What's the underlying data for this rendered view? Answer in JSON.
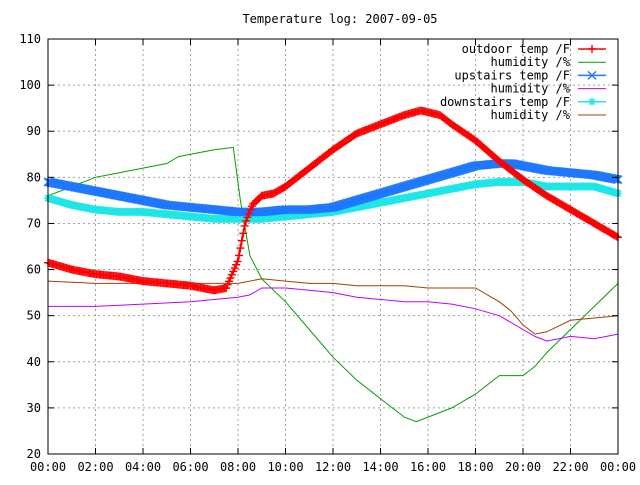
{
  "colors": {
    "outdoor_temp": "#ff0000",
    "outdoor_humidity": "#00a000",
    "upstairs_temp": "#1e78ff",
    "upstairs_humidity": "#c000ff",
    "downstairs_temp": "#1ee6e6",
    "downstairs_humidity": "#a04000"
  },
  "chart_data": {
    "type": "line",
    "title": "Temperature log: 2007-09-05",
    "xlabel": "",
    "ylabel": "",
    "xlim": [
      0,
      24
    ],
    "ylim": [
      20,
      110
    ],
    "grid": true,
    "legend_placement": "top-right",
    "x_ticks": [
      "00:00",
      "02:00",
      "04:00",
      "06:00",
      "08:00",
      "10:00",
      "12:00",
      "14:00",
      "16:00",
      "18:00",
      "20:00",
      "22:00",
      "00:00"
    ],
    "y_ticks": [
      20,
      30,
      40,
      50,
      60,
      70,
      80,
      90,
      100,
      110
    ],
    "series": [
      {
        "name": "outdoor temp /F",
        "color_key": "outdoor_temp",
        "marker": "plus",
        "x": [
          0,
          1,
          2,
          3,
          4,
          5,
          6,
          7,
          7.5,
          8,
          8.3,
          8.6,
          9,
          9.5,
          10,
          11,
          12,
          13,
          14,
          15,
          15.7,
          16.5,
          17,
          18,
          19,
          20,
          21,
          22,
          23,
          24
        ],
        "y": [
          61.5,
          60,
          59,
          58.5,
          57.5,
          57,
          56.5,
          55.5,
          56,
          62,
          70,
          74,
          76,
          76.5,
          78,
          82,
          86,
          89.5,
          91.5,
          93.5,
          94.5,
          93.5,
          91.5,
          88,
          83.5,
          79.5,
          76,
          73,
          70,
          67
        ]
      },
      {
        "name": "humidity /%",
        "color_key": "outdoor_humidity",
        "marker": "none",
        "x": [
          0,
          1,
          2,
          3,
          4,
          5,
          5.5,
          6,
          7,
          7.8,
          8.1,
          8.5,
          9,
          10,
          11,
          12,
          13,
          14,
          15,
          15.5,
          16,
          17,
          18,
          19,
          20,
          20.5,
          21,
          22,
          23,
          24
        ],
        "y": [
          76,
          78,
          80,
          81,
          82,
          83,
          84.5,
          85,
          86,
          86.5,
          75,
          63,
          58,
          53,
          47,
          41,
          36,
          32,
          28,
          27,
          28,
          30,
          33,
          37,
          37,
          39,
          42,
          47,
          52,
          57
        ]
      },
      {
        "name": "upstairs temp /F",
        "color_key": "upstairs_temp",
        "marker": "x",
        "x": [
          0,
          1,
          2,
          3,
          4,
          5,
          6,
          7,
          8,
          9,
          10,
          11,
          12,
          13,
          14,
          15,
          16,
          17,
          18,
          19,
          19.5,
          20,
          21,
          22,
          23,
          24
        ],
        "y": [
          79,
          78,
          77,
          76,
          75,
          74,
          73.5,
          73,
          72.5,
          72.5,
          73,
          73,
          73.5,
          75,
          76.5,
          78,
          79.5,
          81,
          82.5,
          83,
          83,
          82.5,
          81.5,
          81,
          80.5,
          79.5
        ]
      },
      {
        "name": "humidity /%",
        "color_key": "upstairs_humidity",
        "marker": "none",
        "x": [
          0,
          2,
          4,
          6,
          8,
          8.5,
          9,
          10,
          11,
          12,
          13,
          14,
          15,
          16,
          17,
          18,
          19,
          19.5,
          20,
          20.5,
          21,
          21.5,
          22,
          23,
          24
        ],
        "y": [
          52,
          52,
          52.5,
          53,
          54,
          54.5,
          56,
          56,
          55.5,
          55,
          54,
          53.5,
          53,
          53,
          52.5,
          51.5,
          50,
          48.5,
          47,
          45.5,
          44.5,
          45,
          45.5,
          45,
          46
        ]
      },
      {
        "name": "downstairs temp /F",
        "color_key": "downstairs_temp",
        "marker": "star",
        "x": [
          0,
          1,
          2,
          3,
          4,
          5,
          6,
          7,
          8,
          9,
          10,
          11,
          12,
          13,
          14,
          15,
          16,
          17,
          18,
          19,
          20,
          21,
          22,
          23,
          24
        ],
        "y": [
          75.5,
          74,
          73,
          72.5,
          72.5,
          72,
          71.5,
          71,
          71,
          71,
          71.5,
          72,
          72.5,
          73.5,
          74.5,
          75.5,
          76.5,
          77.5,
          78.5,
          79,
          79,
          78,
          78,
          78,
          76.5
        ]
      },
      {
        "name": "humidity /%",
        "color_key": "downstairs_humidity",
        "marker": "none",
        "x": [
          0,
          2,
          4,
          6,
          8,
          9,
          10,
          11,
          12,
          13,
          14,
          15,
          16,
          17,
          18,
          19,
          19.5,
          20,
          20.5,
          21,
          22,
          23,
          24
        ],
        "y": [
          57.5,
          57,
          57,
          57,
          57,
          58,
          57.5,
          57,
          57,
          56.5,
          56.5,
          56.5,
          56,
          56,
          56,
          53,
          51,
          48,
          46,
          46.5,
          49,
          49.5,
          50
        ]
      }
    ]
  }
}
